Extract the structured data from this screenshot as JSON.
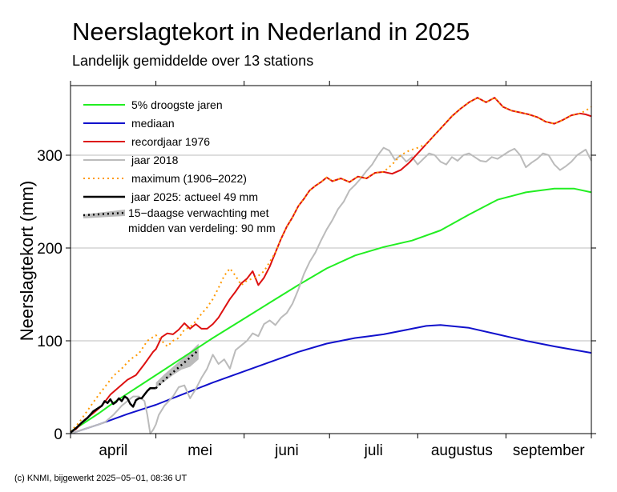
{
  "title": "Neerslagtekort in Nederland in 2025",
  "subtitle": "Landelijk gemiddelde over 13 stations",
  "credit": "(c) KNMI, bijgewerkt 2025−05−01, 08:36 UT",
  "chart_data": {
    "type": "line",
    "ylabel": "Neerslagtekort (mm)",
    "ylim": [
      0,
      375
    ],
    "yticks": [
      0,
      100,
      200,
      300
    ],
    "xlim": [
      0,
      183
    ],
    "grid": true,
    "legend_position": "top-left",
    "month_boundaries": [
      0,
      30,
      61,
      91,
      122,
      153,
      183
    ],
    "months": [
      "april",
      "mei",
      "juni",
      "juli",
      "augustus",
      "september"
    ],
    "series": [
      {
        "name": "5% droogste jaren",
        "color": "#22ee22",
        "style": "solid",
        "width": 2,
        "x": [
          0,
          5,
          10,
          15,
          20,
          25,
          30,
          40,
          50,
          60,
          70,
          80,
          90,
          100,
          110,
          120,
          130,
          140,
          150,
          160,
          170,
          177,
          183
        ],
        "y": [
          2,
          12,
          22,
          33,
          43,
          53,
          63,
          83,
          103,
          122,
          141,
          160,
          178,
          192,
          201,
          208,
          219,
          236,
          252,
          260,
          264,
          264,
          260
        ]
      },
      {
        "name": "mediaan",
        "color": "#1111cc",
        "style": "solid",
        "width": 2,
        "x": [
          0,
          10,
          20,
          30,
          40,
          50,
          60,
          70,
          80,
          90,
          100,
          105,
          110,
          120,
          125,
          130,
          140,
          150,
          160,
          170,
          183
        ],
        "y": [
          0,
          10,
          21,
          31,
          43,
          55,
          66,
          77,
          88,
          97,
          103,
          105,
          107,
          113,
          116,
          117,
          114,
          107,
          100,
          94,
          87
        ]
      },
      {
        "name": "recordjaar 1976",
        "color": "#dd1111",
        "style": "solid",
        "width": 2,
        "x": [
          0,
          2,
          5,
          8,
          11,
          14,
          17,
          20,
          23,
          26,
          29,
          30,
          32,
          34,
          36,
          38,
          40,
          42,
          44,
          46,
          48,
          50,
          52,
          54,
          56,
          58,
          60,
          62,
          64,
          66,
          68,
          70,
          72,
          74,
          76,
          78,
          80,
          82,
          84,
          86,
          88,
          90,
          92,
          95,
          98,
          101,
          104,
          107,
          110,
          113,
          116,
          119,
          122,
          125,
          128,
          131,
          134,
          137,
          140,
          143,
          146,
          149,
          152,
          155,
          158,
          161,
          164,
          167,
          170,
          173,
          176,
          179,
          181,
          183
        ],
        "y": [
          2,
          5,
          15,
          22,
          30,
          42,
          50,
          58,
          63,
          75,
          88,
          91,
          104,
          108,
          107,
          112,
          119,
          113,
          118,
          113,
          113,
          118,
          125,
          135,
          145,
          153,
          162,
          167,
          175,
          160,
          168,
          180,
          195,
          210,
          223,
          233,
          245,
          253,
          262,
          267,
          271,
          276,
          272,
          275,
          271,
          277,
          275,
          281,
          282,
          280,
          284,
          292,
          302,
          312,
          322,
          332,
          342,
          350,
          357,
          362,
          357,
          362,
          352,
          348,
          346,
          344,
          341,
          336,
          334,
          338,
          343,
          345,
          344,
          342
        ]
      },
      {
        "name": "jaar 2018",
        "color": "#bbbbbb",
        "style": "solid",
        "width": 2,
        "x": [
          0,
          3,
          6,
          9,
          12,
          15,
          18,
          20,
          22,
          24,
          26,
          27,
          28,
          29,
          30,
          31,
          33,
          36,
          38,
          40,
          42,
          44,
          46,
          48,
          50,
          52,
          54,
          56,
          58,
          60,
          62,
          64,
          66,
          68,
          70,
          72,
          74,
          76,
          78,
          80,
          82,
          84,
          86,
          88,
          90,
          92,
          94,
          96,
          98,
          100,
          102,
          104,
          106,
          108,
          110,
          112,
          114,
          116,
          118,
          120,
          122,
          124,
          126,
          128,
          130,
          132,
          134,
          136,
          138,
          140,
          142,
          144,
          146,
          148,
          150,
          152,
          154,
          156,
          158,
          160,
          162,
          164,
          166,
          168,
          170,
          172,
          174,
          176,
          178,
          181,
          183
        ],
        "y": [
          0,
          3,
          6,
          9,
          12,
          20,
          30,
          35,
          40,
          40,
          35,
          20,
          0,
          4,
          10,
          20,
          30,
          40,
          50,
          52,
          38,
          48,
          60,
          70,
          85,
          75,
          80,
          70,
          90,
          95,
          100,
          108,
          105,
          118,
          122,
          117,
          125,
          130,
          140,
          155,
          172,
          185,
          195,
          208,
          220,
          230,
          242,
          250,
          262,
          268,
          275,
          283,
          290,
          300,
          308,
          305,
          295,
          300,
          293,
          298,
          290,
          296,
          302,
          300,
          293,
          290,
          298,
          294,
          300,
          302,
          298,
          294,
          293,
          298,
          296,
          300,
          304,
          307,
          300,
          287,
          292,
          296,
          302,
          300,
          290,
          284,
          288,
          293,
          300,
          306,
          294
        ]
      },
      {
        "name": "maximum (1906–2022)",
        "color": "#ff9900",
        "style": "dotted",
        "width": 2,
        "x": [
          0,
          3,
          6,
          9,
          12,
          15,
          18,
          21,
          24,
          27,
          30,
          32,
          34,
          36,
          38,
          40,
          42,
          44,
          46,
          48,
          50,
          52,
          54,
          56,
          58,
          60,
          62,
          64,
          66,
          68,
          70,
          72,
          74,
          76,
          78,
          80,
          82,
          84,
          86,
          88,
          90,
          92,
          95,
          98,
          101,
          104,
          107,
          110,
          113,
          116,
          119,
          122,
          125,
          128,
          131,
          134,
          137,
          140,
          143,
          146,
          149,
          152,
          155,
          158,
          161,
          164,
          167,
          170,
          173,
          176,
          179,
          181,
          183
        ],
        "y": [
          2,
          12,
          25,
          38,
          50,
          62,
          70,
          80,
          86,
          100,
          106,
          100,
          94,
          100,
          103,
          112,
          115,
          121,
          129,
          136,
          145,
          157,
          170,
          178,
          170,
          160,
          165,
          167,
          170,
          175,
          185,
          195,
          210,
          223,
          233,
          245,
          253,
          262,
          267,
          271,
          276,
          272,
          275,
          271,
          277,
          275,
          281,
          282,
          290,
          300,
          305,
          308,
          312,
          322,
          332,
          342,
          350,
          357,
          362,
          357,
          362,
          352,
          348,
          346,
          344,
          341,
          336,
          334,
          338,
          343,
          345,
          348,
          352
        ]
      },
      {
        "name": "jaar 2025: actueel 49 mm",
        "color": "#000000",
        "style": "solid",
        "width": 2.5,
        "x": [
          0,
          2,
          4,
          6,
          8,
          10,
          11,
          12,
          13,
          14,
          15,
          16,
          17,
          18,
          19,
          20,
          21,
          22,
          23,
          24,
          25,
          26,
          27,
          28,
          29,
          30
        ],
        "y": [
          1,
          6,
          12,
          17,
          24,
          28,
          30,
          35,
          33,
          37,
          32,
          34,
          38,
          35,
          40,
          38,
          32,
          29,
          36,
          38,
          38,
          42,
          46,
          49,
          49,
          49
        ]
      }
    ],
    "forecast": {
      "name": "15−daagse verwachting met\nmidden van verdeling: 90 mm",
      "label_line1": "15−daagse verwachting met",
      "label_line2": "midden van verdeling: 90 mm",
      "band_color": "#bbbbbb",
      "line_color": "#000000",
      "style": "dotted",
      "x": [
        30,
        33,
        36,
        39,
        42,
        45
      ],
      "low": [
        49,
        56,
        63,
        69,
        72,
        80
      ],
      "high": [
        55,
        64,
        72,
        80,
        88,
        97
      ],
      "mid": [
        49,
        58,
        66,
        74,
        82,
        90
      ]
    }
  }
}
